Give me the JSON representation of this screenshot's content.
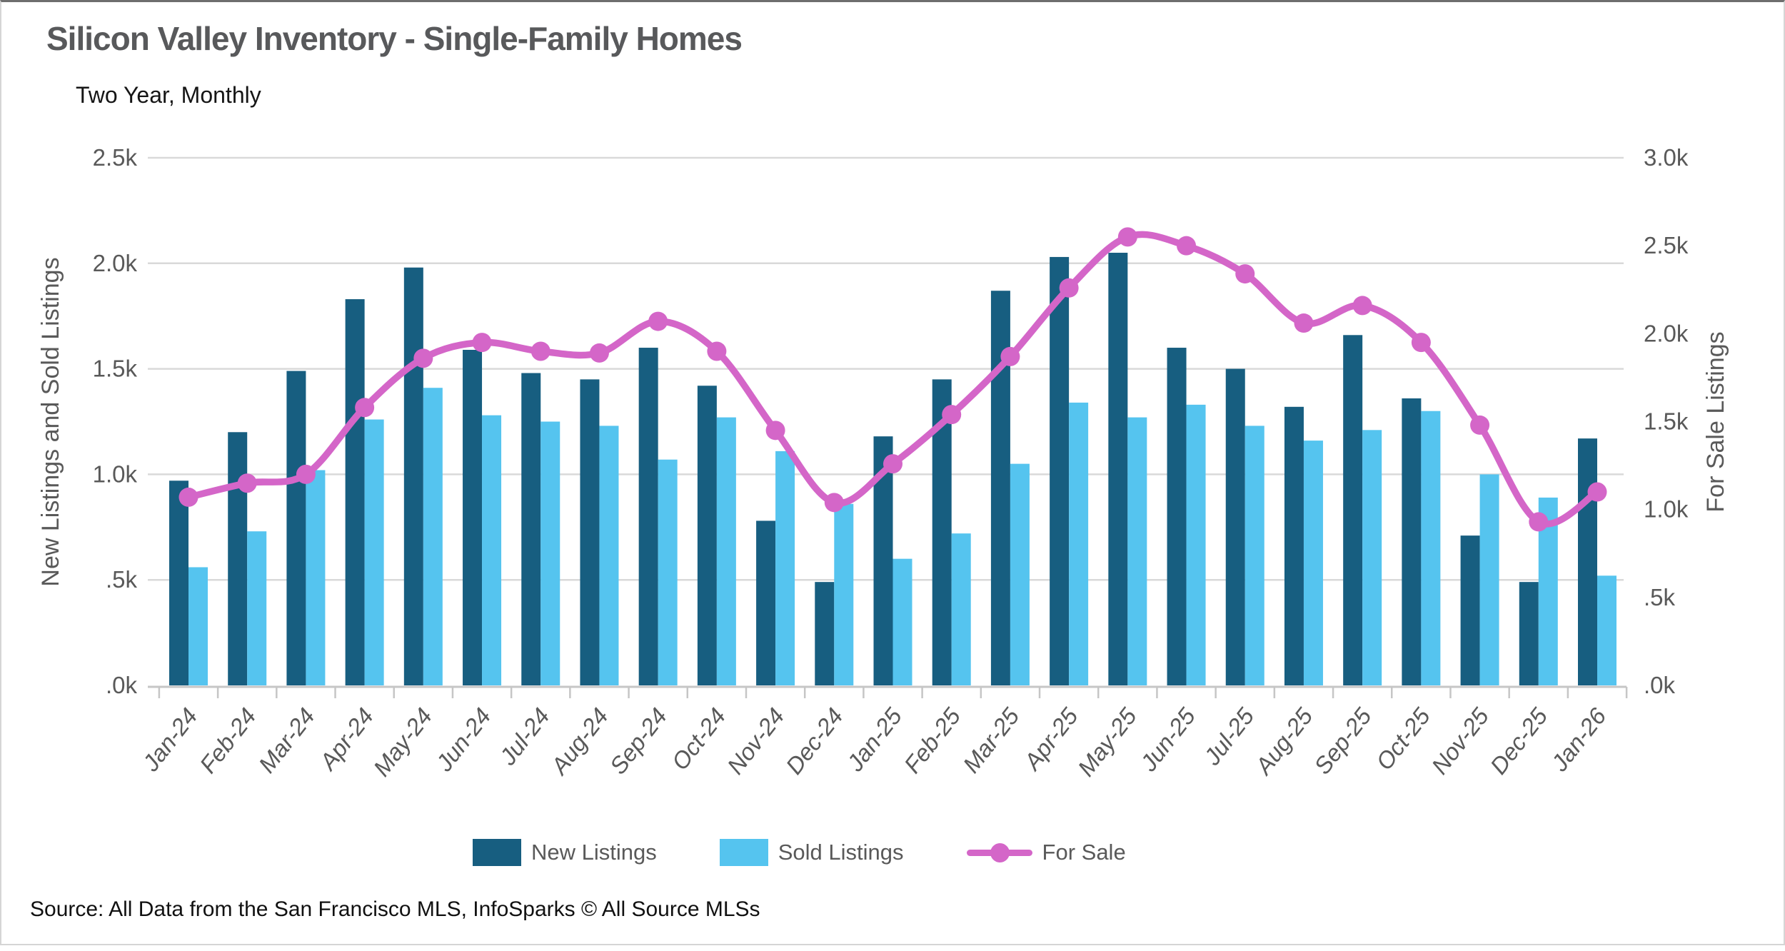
{
  "title": "Silicon Valley Inventory - Single-Family Homes",
  "subtitle": "Two Year, Monthly",
  "source": "Source: All Data from the San Francisco MLS, InfoSparks © All Source MLSs",
  "colors": {
    "new_listings": "#175e80",
    "sold_listings": "#55c4ef",
    "for_sale": "#d466c8",
    "gridline": "#d9d9d9",
    "axis_line": "#c6c6c6",
    "axis_text": "#595959",
    "title_text": "#58595b"
  },
  "chart_data": {
    "type": "bar+line",
    "title": "Silicon Valley Inventory - Single-Family Homes",
    "subtitle": "Two Year, Monthly",
    "grid": "horizontal",
    "legend_position": "bottom",
    "categories": [
      "Jan-24",
      "Feb-24",
      "Mar-24",
      "Apr-24",
      "May-24",
      "Jun-24",
      "Jul-24",
      "Aug-24",
      "Sep-24",
      "Oct-24",
      "Nov-24",
      "Dec-24",
      "Jan-25",
      "Feb-25",
      "Mar-25",
      "Apr-25",
      "May-25",
      "Jun-25",
      "Jul-25",
      "Aug-25",
      "Sep-25",
      "Oct-25",
      "Nov-25",
      "Dec-25",
      "Jan-26"
    ],
    "series": [
      {
        "name": "New Listings",
        "type": "bar",
        "axis": "left",
        "values": [
          970,
          1200,
          1490,
          1830,
          1980,
          1590,
          1480,
          1450,
          1600,
          1420,
          780,
          490,
          1180,
          1450,
          1870,
          2030,
          2050,
          1600,
          1500,
          1320,
          1660,
          1360,
          710,
          490,
          1170
        ]
      },
      {
        "name": "Sold Listings",
        "type": "bar",
        "axis": "left",
        "values": [
          560,
          730,
          1020,
          1260,
          1410,
          1280,
          1250,
          1230,
          1070,
          1270,
          1110,
          860,
          600,
          720,
          1050,
          1340,
          1270,
          1330,
          1230,
          1160,
          1210,
          1300,
          1000,
          890,
          520
        ]
      },
      {
        "name": "For Sale",
        "type": "line",
        "axis": "right",
        "values": [
          1070,
          1150,
          1200,
          1580,
          1860,
          1950,
          1900,
          1890,
          2070,
          1900,
          1450,
          1040,
          1260,
          1540,
          1870,
          2260,
          2550,
          2500,
          2340,
          2060,
          2160,
          1950,
          1480,
          930,
          1100
        ]
      }
    ],
    "left_axis": {
      "label": "New Listings and Sold Listings",
      "min": 0,
      "max": 2500,
      "ticks": [
        {
          "label": "2.5k",
          "value": 2500
        },
        {
          "label": "2.0k",
          "value": 2000
        },
        {
          "label": "1.5k",
          "value": 1500
        },
        {
          "label": "1.0k",
          "value": 1000
        },
        {
          "label": ".5k",
          "value": 500
        },
        {
          "label": ".0k",
          "value": 0
        }
      ]
    },
    "right_axis": {
      "label": "For Sale Listings",
      "min": 0,
      "max": 3000,
      "ticks": [
        {
          "label": "3.0k",
          "value": 3000
        },
        {
          "label": "2.5k",
          "value": 2500
        },
        {
          "label": "2.0k",
          "value": 2000
        },
        {
          "label": "1.5k",
          "value": 1500
        },
        {
          "label": "1.0k",
          "value": 1000
        },
        {
          "label": ".5k",
          "value": 500
        },
        {
          "label": ".0k",
          "value": 0
        }
      ]
    }
  }
}
